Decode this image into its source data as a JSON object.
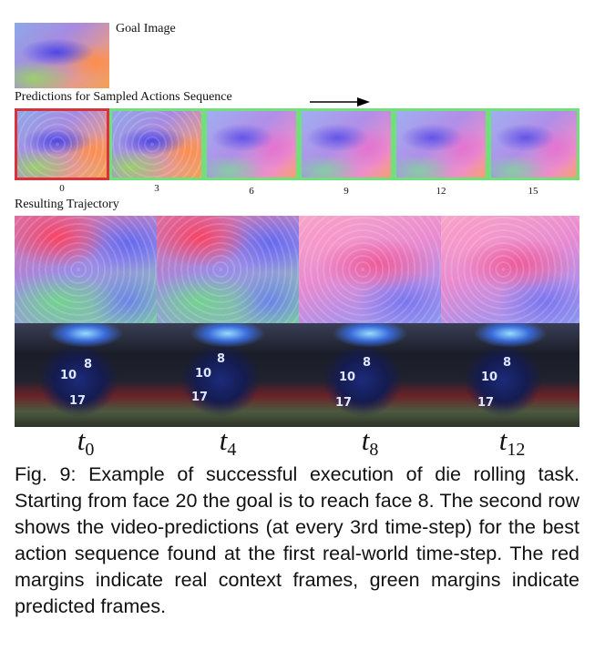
{
  "goal_label": "Goal Image",
  "predictions_label": "Predictions for Sampled Actions Sequence",
  "prediction_steps": [
    "0",
    "3",
    "6",
    "9",
    "12",
    "15"
  ],
  "trajectory_label": "Resulting Trajectory",
  "time_labels": [
    {
      "base": "t",
      "sub": "0"
    },
    {
      "base": "t",
      "sub": "4"
    },
    {
      "base": "t",
      "sub": "8"
    },
    {
      "base": "t",
      "sub": "12"
    }
  ],
  "die_faces": [
    "8",
    "10",
    "17"
  ],
  "caption": "Fig. 9: Example of successful execution of die rolling task. Starting from face 20 the goal is to reach face 8. The second row shows the video-predictions (at every 3rd time-step) for the best action sequence found at the first real-world time-step. The red margins indicate real context frames, green margins indicate predicted frames.",
  "colors": {
    "real_margin": "#d9323a",
    "predicted_margin": "#6fe07a"
  }
}
